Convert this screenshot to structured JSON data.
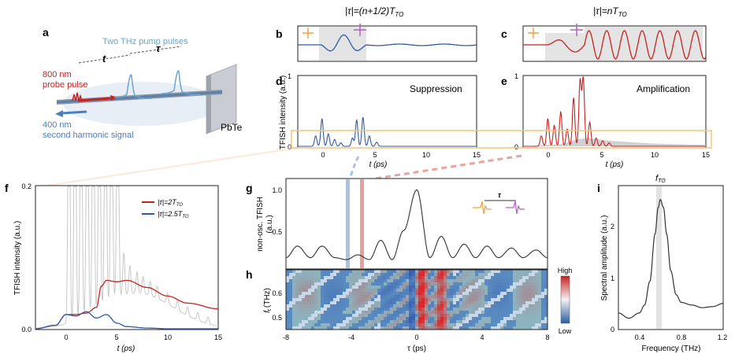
{
  "colors": {
    "red": "#c8221e",
    "blue": "#2f5aa8",
    "lightblue": "#6aa6cc",
    "orange": "#f0a040",
    "purple": "#b060c0",
    "grey": "#bdbdbd",
    "orange_box": "#f5c37a"
  },
  "panel_labels": {
    "a": "a",
    "b": "b",
    "c": "c",
    "d": "d",
    "e": "e",
    "f": "f",
    "g": "g",
    "h": "h",
    "i": "i"
  },
  "panel_a": {
    "pump_label": "Two THz pump pulses",
    "probe_label_1": "800 nm",
    "probe_label_2": "probe pulse",
    "sig_label_1": "400 nm",
    "sig_label_2": "second harmonic signal",
    "t_label": "t",
    "tau_label": "τ",
    "sample_label": "PbTe"
  },
  "headers": {
    "b_title": "|τ|=(n+1/2)T",
    "b_sub": "TO",
    "c_title": "|τ|=nT",
    "c_sub": "TO"
  },
  "panel_d": {
    "text": "Suppression",
    "ylabel": "TFISH intensity (a.u.)",
    "xlabel": "t (ps)",
    "xticks": [
      "0",
      "5",
      "10",
      "15"
    ],
    "yticks": [
      "0",
      "1"
    ]
  },
  "panel_e": {
    "text": "Amplification",
    "xlabel": "t (ps)",
    "xticks": [
      "0",
      "5",
      "10",
      "15"
    ],
    "yticks": [
      "0",
      "1"
    ]
  },
  "panel_f": {
    "ylabel": "TFISH intensity (a.u.)",
    "xlabel": "t (ps)",
    "xticks": [
      "0",
      "5",
      "10",
      "15"
    ],
    "yticks": [
      "0.0",
      "0.2"
    ],
    "legend_red": "|τ|=2T",
    "legend_red_sub": "TO",
    "legend_blue": "|τ|=2.5T",
    "legend_blue_sub": "TO"
  },
  "panel_g": {
    "ylabel_1": "non-osc. TFISH",
    "ylabel_2": "(a.u.)",
    "yticks": [
      "0.5",
      "1.0"
    ],
    "inset_tau": "τ"
  },
  "panel_h": {
    "ylabel": "f",
    "ylabel_sub": "t",
    "ylabel_unit": "(THz)",
    "yticks": [
      "0.5",
      "0.6"
    ],
    "xlabel": "τ (ps)",
    "xticks": [
      "-8",
      "-4",
      "0",
      "4",
      "8"
    ],
    "cbar_high": "High",
    "cbar_low": "Low"
  },
  "panel_i": {
    "title": "f",
    "title_sub": "TO",
    "ylabel": "Spectral amplitude (a.u.)",
    "xlabel": "Frequency (THz)",
    "xticks": [
      "0.4",
      "0.8",
      "1.2"
    ],
    "yticks": [
      "0",
      "1",
      "2"
    ]
  },
  "chart_data": [
    {
      "type": "line",
      "panel": "d",
      "text": "Suppression",
      "xlabel": "t (ps)",
      "ylabel": "TFISH intensity (a.u.)",
      "xlim": [
        -2,
        15
      ],
      "ylim": [
        0,
        1
      ],
      "series": [
        {
          "color": "#2f5aa8",
          "peaks_x": [
            -0.3,
            0.3,
            0.9,
            1.5,
            2.1,
            3.2,
            3.6,
            4.2,
            4.8,
            5.5
          ],
          "peaks_y": [
            0.15,
            0.4,
            0.18,
            0.1,
            0.05,
            0.12,
            0.38,
            0.42,
            0.15,
            0.06
          ]
        }
      ]
    },
    {
      "type": "line",
      "panel": "e",
      "text": "Amplification",
      "xlabel": "t (ps)",
      "xlim": [
        -2,
        15
      ],
      "ylim": [
        0,
        1
      ],
      "series": [
        {
          "color": "#c8221e",
          "peaks_x": [
            -0.3,
            0.3,
            0.9,
            1.5,
            2.1,
            2.7,
            3.3,
            3.6,
            4.2,
            4.8,
            5.4,
            6.0
          ],
          "peaks_y": [
            0.15,
            0.4,
            0.3,
            0.5,
            0.25,
            0.7,
            0.95,
            0.98,
            0.35,
            0.12,
            0.08,
            0.05
          ]
        }
      ]
    },
    {
      "type": "line",
      "panel": "f",
      "xlabel": "t (ps)",
      "ylabel": "TFISH intensity (a.u.)",
      "xlim": [
        -3,
        15
      ],
      "ylim": [
        0,
        0.2
      ],
      "series": [
        {
          "name": "|τ|=2T_TO",
          "color": "#c8221e",
          "x": [
            -3,
            -1,
            0,
            1,
            2,
            3,
            3.5,
            4,
            5,
            6,
            8,
            10,
            12,
            15
          ],
          "y": [
            0,
            0.005,
            0.02,
            0.02,
            0.022,
            0.03,
            0.06,
            0.068,
            0.066,
            0.068,
            0.058,
            0.046,
            0.036,
            0.028
          ]
        },
        {
          "name": "|τ|=2.5T_TO",
          "color": "#2f5aa8",
          "x": [
            -3,
            -1,
            0,
            1,
            2,
            3,
            4,
            5,
            6,
            8,
            10,
            15
          ],
          "y": [
            0,
            0.005,
            0.02,
            0.018,
            0.024,
            0.015,
            0.02,
            0.008,
            0.003,
            0.001,
            0,
            0
          ]
        }
      ]
    },
    {
      "type": "line",
      "panel": "g",
      "ylabel": "non-osc. TFISH (a.u.)",
      "xlim": [
        -8,
        8
      ],
      "ylim": [
        0.2,
        1.1
      ],
      "series": [
        {
          "color": "#333333",
          "x": [
            -8,
            -7.3,
            -6.5,
            -5.8,
            -5.0,
            -4.3,
            -3.6,
            -2.9,
            -2.2,
            -1.5,
            -0.8,
            0,
            0.8,
            1.5,
            2.2,
            2.9,
            3.6,
            4.3,
            5.0,
            5.8,
            6.5,
            7.3,
            8
          ],
          "y": [
            0.3,
            0.42,
            0.3,
            0.42,
            0.3,
            0.28,
            0.33,
            0.28,
            0.48,
            0.28,
            0.58,
            1.0,
            0.3,
            0.52,
            0.3,
            0.44,
            0.3,
            0.42,
            0.3,
            0.4,
            0.3,
            0.38,
            0.3
          ]
        }
      ]
    },
    {
      "type": "heatmap",
      "panel": "h",
      "xlabel": "τ (ps)",
      "ylabel": "f_t (THz)",
      "xlim": [
        -8,
        8
      ],
      "ylim": [
        0.45,
        0.7
      ],
      "colorbar": [
        "Low",
        "High"
      ]
    },
    {
      "type": "line",
      "panel": "i",
      "title": "f_TO",
      "xlabel": "Frequency (THz)",
      "ylabel": "Spectral amplitude (a.u.)",
      "xlim": [
        0.2,
        1.2
      ],
      "ylim": [
        0,
        2.7
      ],
      "series": [
        {
          "color": "#333333",
          "x": [
            0.2,
            0.3,
            0.4,
            0.45,
            0.5,
            0.55,
            0.58,
            0.6,
            0.63,
            0.66,
            0.7,
            0.75,
            0.8,
            0.9,
            1.0,
            1.1,
            1.2
          ],
          "y": [
            0.3,
            0.2,
            0.3,
            0.45,
            0.9,
            1.8,
            2.3,
            2.45,
            2.3,
            1.8,
            1.1,
            0.65,
            0.5,
            0.45,
            0.4,
            0.42,
            0.48
          ]
        }
      ]
    }
  ]
}
